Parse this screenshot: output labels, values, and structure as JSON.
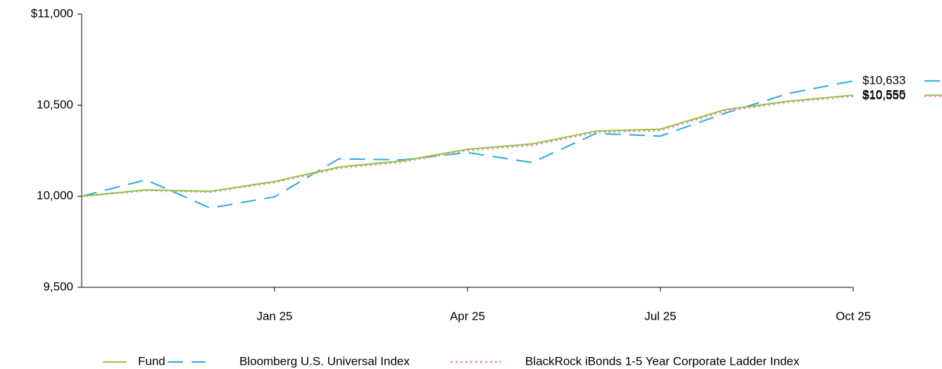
{
  "chart_data": {
    "type": "line",
    "categories": [
      null,
      null,
      null,
      "Jan 25",
      null,
      null,
      "Apr 25",
      null,
      null,
      "Jul 25",
      null,
      null,
      "Oct 25"
    ],
    "ylim": [
      9500,
      11000
    ],
    "yticks": [
      {
        "value": 11000,
        "label": "$11,000"
      },
      {
        "value": 10500,
        "label": "10,500"
      },
      {
        "value": 10000,
        "label": "10,000"
      },
      {
        "value": 9500,
        "label": "9,500"
      }
    ],
    "legend": "bottom",
    "series": [
      {
        "name": "Fund",
        "color": "#8dc63f",
        "dash": "solid",
        "values": [
          10000,
          10035,
          10027,
          10081,
          10160,
          10195,
          10258,
          10287,
          10358,
          10368,
          10475,
          10522,
          10555
        ],
        "value_labels": [
          null,
          null,
          null,
          null,
          null,
          null,
          null,
          null,
          null,
          null,
          null,
          null,
          "$10,555"
        ]
      },
      {
        "name": "Bloomberg U.S. Universal Index",
        "color": "#29a9e0",
        "dash": "dashed",
        "values": [
          10000,
          10090,
          9935,
          9997,
          10205,
          10200,
          10240,
          10185,
          10345,
          10330,
          10455,
          10565,
          10633
        ],
        "value_labels": [
          null,
          null,
          null,
          null,
          null,
          null,
          null,
          null,
          null,
          null,
          null,
          null,
          "$10,633"
        ]
      },
      {
        "name": "BlackRock iBonds 1-5 Year Corporate Ladder Index",
        "color": "#f28fd0",
        "dash": "dotted",
        "values": [
          10000,
          10032,
          10024,
          10077,
          10155,
          10190,
          10252,
          10280,
          10352,
          10362,
          10468,
          10518,
          10550
        ],
        "value_labels": [
          null,
          null,
          null,
          null,
          null,
          null,
          null,
          null,
          null,
          null,
          null,
          null,
          "$10,550"
        ]
      }
    ]
  }
}
